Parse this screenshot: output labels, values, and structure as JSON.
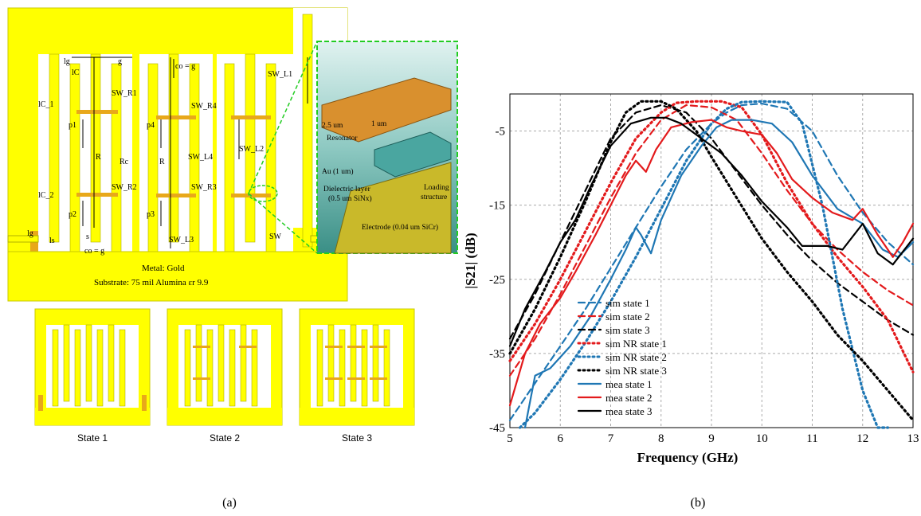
{
  "panel_a": {
    "caption": "(a)",
    "dims": {
      "lg_top": "lg",
      "lC": "lC",
      "g": "g",
      "co_eq_g_top": "co = g",
      "sw_l1": "SW_L1",
      "lc_1": "lC_1",
      "sw_r1": "SW_R1",
      "sw_r4": "SW_R4",
      "p1": "p1",
      "p4": "p4",
      "r_left": "R",
      "rc": "Rc",
      "r_mid": "R",
      "sw_l4": "SW_L4",
      "sw_l2": "SW_L2",
      "lc_2": "lC_2",
      "sw_r2": "SW_R2",
      "sw_r3": "SW_R3",
      "p2": "p2",
      "p3": "p3",
      "lg_bottom": "lg",
      "ls": "ls",
      "s": "s",
      "co_eq_g_bottom": "co = g",
      "sw_l3": "SW_L3",
      "sw": "SW"
    },
    "metal": "Metal: Gold",
    "substrate": "Substrate: 75 mil Alumina εr 9.9",
    "inset": {
      "t_resonator": "2.5 um",
      "t_gap": "1 um",
      "resonator": "Resonator",
      "au": "Au (1 um)",
      "dielectric_1": "Dielectric layer",
      "dielectric_2": "(0.5 um SiNx)",
      "loading_1": "Loading",
      "loading_2": "structure",
      "electrode": "Electrode (0.04 um SiCr)"
    },
    "states": [
      "State 1",
      "State 2",
      "State 3"
    ],
    "colors": {
      "metal": "#ffff00",
      "substrate": "#ffffff",
      "pad": "#e8a81a",
      "inset_outline": "#22cc22"
    }
  },
  "panel_b": {
    "caption": "(b)",
    "chart_data": {
      "type": "line",
      "xlabel": "Frequency (GHz)",
      "ylabel": "|S21| (dB)",
      "xlim": [
        5,
        13
      ],
      "ylim": [
        -45,
        0
      ],
      "xticks": [
        5,
        6,
        7,
        8,
        9,
        10,
        11,
        12,
        13
      ],
      "yticks": [
        -5,
        -15,
        -25,
        -35,
        -45
      ],
      "grid": true,
      "legend_position": "lower-left",
      "series": [
        {
          "name": "sim state 1",
          "style": "dashed",
          "color": "#1f77b4",
          "x": [
            5,
            5.5,
            6,
            6.5,
            7,
            7.5,
            8,
            8.5,
            9,
            9.3,
            9.6,
            10,
            10.5,
            11,
            11.5,
            12,
            12.5,
            13
          ],
          "y": [
            -44,
            -39,
            -34,
            -29,
            -23.5,
            -18,
            -12.5,
            -7.5,
            -4,
            -2.5,
            -1.5,
            -1.3,
            -2,
            -5,
            -11,
            -16,
            -20,
            -23
          ]
        },
        {
          "name": "sim state 2",
          "style": "dashed",
          "color": "#e31a1c",
          "x": [
            5,
            5.5,
            6,
            6.5,
            7,
            7.5,
            8,
            8.5,
            9,
            9.5,
            10,
            10.5,
            11,
            11.5,
            12,
            12.5,
            13
          ],
          "y": [
            -38,
            -33,
            -27,
            -20.5,
            -14,
            -8,
            -3.5,
            -1.5,
            -1.8,
            -3.5,
            -8,
            -13,
            -17.5,
            -21,
            -24,
            -26.5,
            -28.5
          ]
        },
        {
          "name": "sim state 3",
          "style": "dashed",
          "color": "#000000",
          "x": [
            5,
            5.5,
            6,
            6.5,
            7,
            7.5,
            8,
            8.5,
            9,
            9.5,
            10,
            10.5,
            11,
            11.5,
            12,
            12.5,
            13
          ],
          "y": [
            -33,
            -27,
            -20,
            -13,
            -6,
            -2.5,
            -1.5,
            -2.5,
            -6,
            -10.5,
            -15,
            -19,
            -22.5,
            -25.5,
            -28,
            -30.5,
            -32.5
          ]
        },
        {
          "name": "sim NR state 1",
          "style": "dotted",
          "color": "#e31a1c",
          "x": [
            5,
            5.5,
            6,
            6.5,
            7,
            7.5,
            8,
            8.3,
            8.7,
            9.2,
            9.6,
            10,
            10.5,
            11,
            11.5,
            12,
            12.5,
            13
          ],
          "y": [
            -36,
            -31,
            -25,
            -18.5,
            -12,
            -6,
            -2.5,
            -1.2,
            -1,
            -1,
            -1.8,
            -5.5,
            -12,
            -17.5,
            -22,
            -26,
            -30.5,
            -37.5
          ]
        },
        {
          "name": "sim NR state 2",
          "style": "dotted",
          "color": "#1f77b4",
          "x": [
            5.2,
            5.5,
            6,
            6.5,
            7,
            7.5,
            8,
            8.5,
            9,
            9.3,
            9.6,
            10,
            10.5,
            10.8,
            11.2,
            11.6,
            12,
            12.3,
            12.5
          ],
          "y": [
            -45,
            -43,
            -38.5,
            -33.5,
            -28,
            -22,
            -15.5,
            -9,
            -4,
            -2,
            -1.1,
            -1,
            -1.1,
            -4,
            -15,
            -29,
            -40,
            -45,
            -45
          ]
        },
        {
          "name": "sim NR state 3",
          "style": "dotted",
          "color": "#000000",
          "x": [
            5,
            5.5,
            6,
            6.5,
            7,
            7.3,
            7.6,
            8,
            8.3,
            8.7,
            9,
            9.5,
            10,
            10.5,
            11,
            11.5,
            12,
            12.5,
            13
          ],
          "y": [
            -35,
            -29,
            -22,
            -14.5,
            -6.5,
            -2.5,
            -1,
            -1,
            -2,
            -5,
            -8.5,
            -14,
            -19.5,
            -24,
            -28,
            -32.5,
            -36,
            -40,
            -44
          ]
        },
        {
          "name": "mea state 1",
          "style": "solid",
          "color": "#1f77b4",
          "x": [
            5.3,
            5.5,
            5.8,
            6.2,
            6.6,
            7,
            7.3,
            7.5,
            7.6,
            7.8,
            8,
            8.4,
            8.8,
            9.1,
            9.4,
            9.8,
            10.2,
            10.6,
            11,
            11.5,
            12,
            12.4,
            12.7,
            13
          ],
          "y": [
            -45,
            -38,
            -37,
            -34,
            -30,
            -25,
            -21,
            -18,
            -19,
            -21.5,
            -17,
            -11,
            -7,
            -4.5,
            -3.5,
            -3.5,
            -4,
            -6.5,
            -11,
            -15.5,
            -17.5,
            -21,
            -22,
            -20
          ]
        },
        {
          "name": "mea state 2",
          "style": "solid",
          "color": "#e31a1c",
          "x": [
            5,
            5.3,
            5.6,
            6,
            6.3,
            6.7,
            7,
            7.3,
            7.5,
            7.7,
            7.9,
            8.2,
            8.6,
            9,
            9.3,
            9.6,
            10,
            10.3,
            10.6,
            11,
            11.4,
            11.8,
            12,
            12.3,
            12.6,
            12.8,
            13
          ],
          "y": [
            -42,
            -35,
            -31,
            -27.5,
            -24,
            -19,
            -15,
            -11,
            -9,
            -10.5,
            -7.5,
            -4.5,
            -3.8,
            -3.5,
            -4.5,
            -5,
            -5.5,
            -8,
            -11.5,
            -14,
            -16,
            -17,
            -15.5,
            -19,
            -22,
            -20,
            -17.5
          ]
        },
        {
          "name": "mea state 3",
          "style": "solid",
          "color": "#000000",
          "x": [
            5,
            5.3,
            5.7,
            6,
            6.3,
            6.6,
            7,
            7.4,
            7.8,
            8.1,
            8.4,
            8.8,
            9.2,
            9.6,
            10,
            10.5,
            10.8,
            11,
            11.3,
            11.6,
            12,
            12.3,
            12.6,
            13
          ],
          "y": [
            -34,
            -29,
            -24,
            -20,
            -17,
            -12.5,
            -7,
            -4,
            -3.2,
            -3.2,
            -4,
            -6,
            -8,
            -11,
            -14.5,
            -18,
            -20.5,
            -20.5,
            -20.5,
            -21,
            -17.5,
            -21.5,
            -23,
            -19.5
          ]
        }
      ]
    }
  }
}
